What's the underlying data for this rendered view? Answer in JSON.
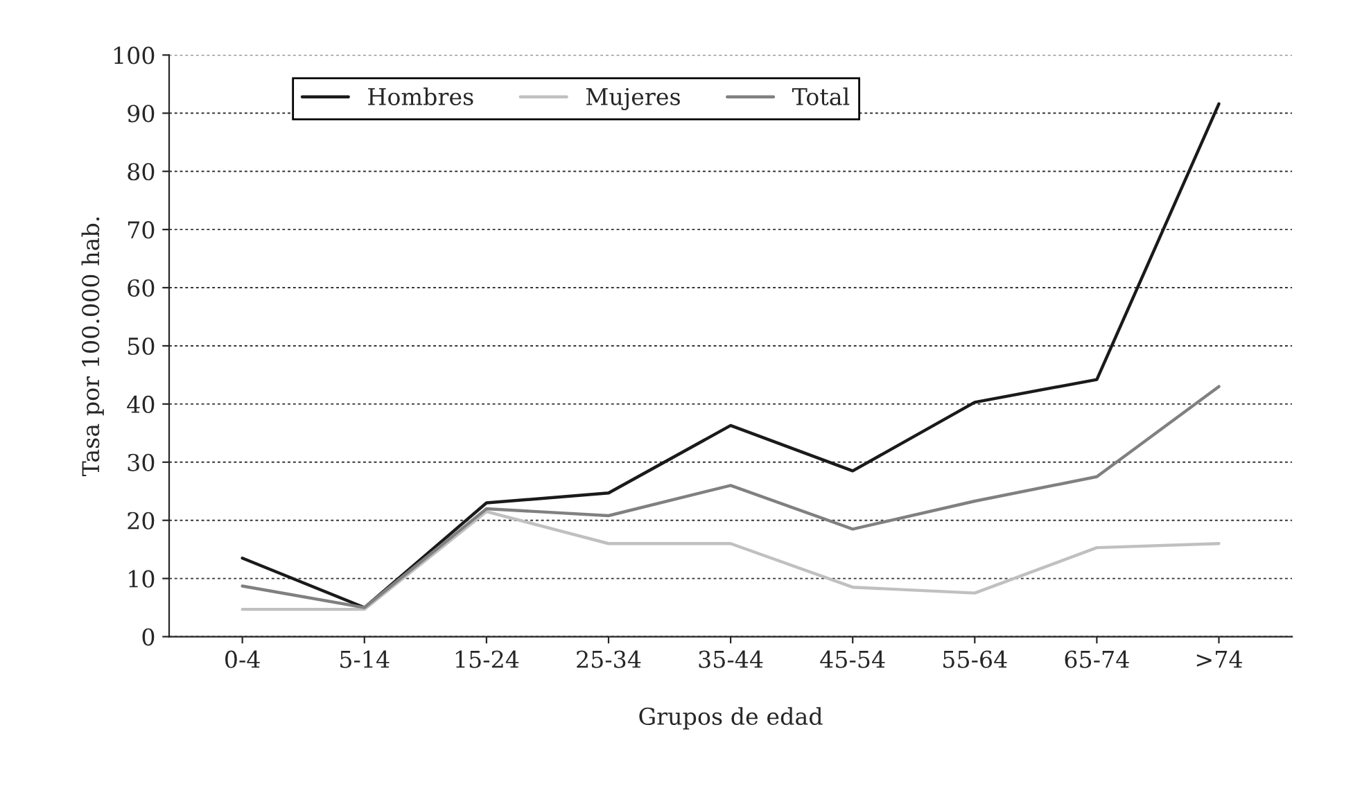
{
  "chart_data": {
    "type": "line",
    "xlabel": "Grupos de edad",
    "ylabel": "Tasa por 100.000 hab.",
    "categories": [
      "0-4",
      "5-14",
      "15-24",
      "25-34",
      "35-44",
      "45-54",
      "55-64",
      "65-74",
      ">74"
    ],
    "series": [
      {
        "name": "Hombres",
        "color": "#1a1a1a",
        "values": [
          13.5,
          5,
          23,
          24.7,
          36.3,
          28.5,
          40.3,
          44.2,
          91.6
        ]
      },
      {
        "name": "Mujeres",
        "color": "#c0c0c0",
        "values": [
          4.7,
          4.7,
          21.5,
          16,
          16,
          8.5,
          7.5,
          15.3,
          16
        ]
      },
      {
        "name": "Total",
        "color": "#808080",
        "values": [
          8.7,
          5,
          22,
          20.8,
          26,
          18.5,
          23.3,
          27.5,
          43
        ]
      }
    ],
    "ylim": [
      0,
      100
    ],
    "yticks": [
      0,
      10,
      20,
      30,
      40,
      50,
      60,
      70,
      80,
      90,
      100
    ],
    "grid": "y",
    "legend": "top left",
    "marker": "none",
    "line_style": "solid"
  }
}
